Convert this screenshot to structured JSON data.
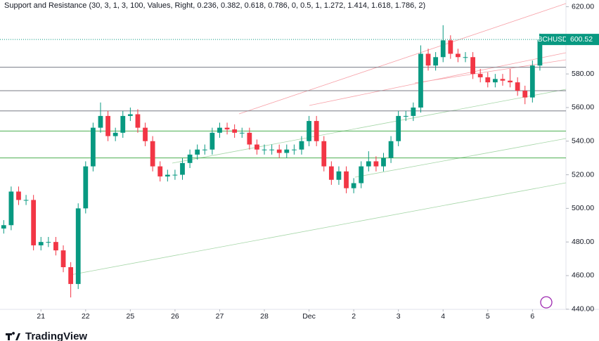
{
  "chart_data": {
    "type": "candlestick",
    "title": "Support and Resistance (30, 3, 1, 3, 100, Values, Right, 0.236, 0.382, 0.618, 0.786, 0, 0.5, 1, 1.272, 1.414, 1.618, 1.786, 2)",
    "symbol": "BCHUSD",
    "last_price": 600.52,
    "last_price_label": "600.52",
    "brand": "TradingView",
    "up_color": "#089981",
    "down_color": "#f23645",
    "xlim": [
      -0.5,
      75.5
    ],
    "ylim": [
      439.9,
      624
    ],
    "xticks": [
      {
        "value": 5,
        "label": "21"
      },
      {
        "value": 11,
        "label": "22"
      },
      {
        "value": 17,
        "label": "25"
      },
      {
        "value": 23,
        "label": "26"
      },
      {
        "value": 29,
        "label": "27"
      },
      {
        "value": 35,
        "label": "28"
      },
      {
        "value": 41,
        "label": "Dec"
      },
      {
        "value": 47,
        "label": "2"
      },
      {
        "value": 53,
        "label": "3"
      },
      {
        "value": 59,
        "label": "4"
      },
      {
        "value": 65,
        "label": "5"
      },
      {
        "value": 71,
        "label": "6"
      }
    ],
    "yticks": [
      {
        "value": 440,
        "label": "440.00"
      },
      {
        "value": 460,
        "label": "460.00"
      },
      {
        "value": 480,
        "label": "480.00"
      },
      {
        "value": 500,
        "label": "500.00"
      },
      {
        "value": 520,
        "label": "520.00"
      },
      {
        "value": 540,
        "label": "540.00"
      },
      {
        "value": 560,
        "label": "560.00"
      },
      {
        "value": 580,
        "label": "580.00"
      },
      {
        "value": 600,
        "label": "600.00"
      },
      {
        "value": 620,
        "label": "620.00"
      }
    ],
    "levels": [
      {
        "value": 584,
        "color": "#787b86"
      },
      {
        "value": 570,
        "color": "#787b86"
      },
      {
        "value": 558,
        "color": "#787b86"
      },
      {
        "value": 546,
        "color": "#4caf50"
      },
      {
        "value": 530,
        "color": "#4caf50"
      }
    ],
    "open": [
      488,
      490,
      510,
      505,
      505,
      478,
      480,
      480,
      475,
      465,
      455,
      500,
      525,
      548,
      555,
      543,
      545,
      555,
      556,
      548,
      540,
      525,
      519,
      520,
      520,
      527,
      532,
      535,
      535,
      545,
      548,
      547,
      545,
      545,
      538,
      535,
      535,
      535,
      533,
      535,
      535,
      540,
      552,
      540,
      525,
      517,
      522,
      512,
      515,
      525,
      528,
      525,
      530,
      540,
      555,
      555,
      560,
      592,
      585,
      590,
      600,
      592,
      590,
      590,
      580,
      578,
      575,
      577,
      576,
      575,
      570,
      566,
      585
    ],
    "high": [
      493,
      513,
      513,
      508,
      508,
      483,
      483,
      483,
      478,
      468,
      503,
      528,
      551,
      563,
      558,
      548,
      558,
      560,
      559,
      551,
      543,
      528,
      523,
      523,
      530,
      535,
      538,
      538,
      548,
      551,
      551,
      550,
      548,
      548,
      541,
      538,
      538,
      538,
      538,
      538,
      543,
      555,
      555,
      543,
      528,
      525,
      525,
      518,
      528,
      534,
      531,
      533,
      543,
      558,
      558,
      563,
      597,
      595,
      593,
      609,
      603,
      595,
      593,
      593,
      583,
      581,
      580,
      580,
      583,
      578,
      573,
      588,
      604
    ],
    "low": [
      485,
      487,
      502,
      502,
      475,
      475,
      477,
      472,
      462,
      447,
      452,
      497,
      522,
      545,
      540,
      540,
      542,
      552,
      545,
      537,
      522,
      516,
      516,
      517,
      517,
      524,
      529,
      532,
      532,
      542,
      544,
      542,
      542,
      535,
      532,
      532,
      532,
      530,
      530,
      532,
      532,
      537,
      537,
      522,
      514,
      514,
      509,
      509,
      512,
      522,
      522,
      522,
      527,
      537,
      552,
      552,
      557,
      582,
      582,
      587,
      589,
      587,
      587,
      577,
      575,
      572,
      572,
      573,
      572,
      567,
      562,
      563,
      582
    ],
    "close": [
      490,
      510,
      505,
      505,
      478,
      480,
      480,
      475,
      465,
      455,
      500,
      525,
      548,
      555,
      543,
      545,
      555,
      556,
      548,
      540,
      525,
      519,
      520,
      520,
      527,
      532,
      535,
      535,
      545,
      548,
      547,
      545,
      545,
      538,
      535,
      535,
      535,
      533,
      535,
      535,
      540,
      552,
      540,
      525,
      517,
      522,
      512,
      515,
      525,
      528,
      525,
      530,
      540,
      555,
      555,
      560,
      592,
      585,
      590,
      600,
      592,
      590,
      590,
      580,
      578,
      575,
      577,
      576,
      575,
      570,
      566,
      585,
      600.52
    ]
  }
}
